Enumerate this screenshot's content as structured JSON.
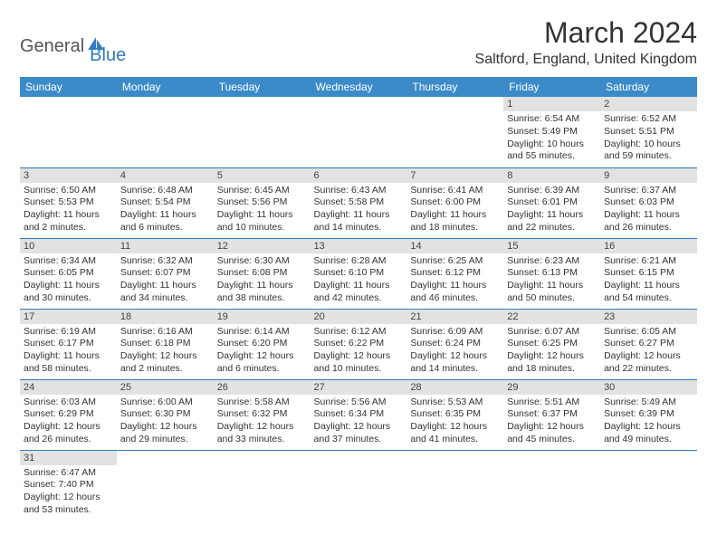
{
  "brand": {
    "part1": "General",
    "part2": "Blue"
  },
  "title": "March 2024",
  "location": "Saltford, England, United Kingdom",
  "colors": {
    "header_bg": "#3b8bc9",
    "header_text": "#ffffff",
    "row_divider": "#2f7bbf",
    "daynum_bg": "#e2e2e2",
    "brand_accent": "#2f7bbf"
  },
  "weekdays": [
    "Sunday",
    "Monday",
    "Tuesday",
    "Wednesday",
    "Thursday",
    "Friday",
    "Saturday"
  ],
  "weeks": [
    [
      {
        "day": "",
        "sunrise": "",
        "sunset": "",
        "daylight1": "",
        "daylight2": ""
      },
      {
        "day": "",
        "sunrise": "",
        "sunset": "",
        "daylight1": "",
        "daylight2": ""
      },
      {
        "day": "",
        "sunrise": "",
        "sunset": "",
        "daylight1": "",
        "daylight2": ""
      },
      {
        "day": "",
        "sunrise": "",
        "sunset": "",
        "daylight1": "",
        "daylight2": ""
      },
      {
        "day": "",
        "sunrise": "",
        "sunset": "",
        "daylight1": "",
        "daylight2": ""
      },
      {
        "day": "1",
        "sunrise": "Sunrise: 6:54 AM",
        "sunset": "Sunset: 5:49 PM",
        "daylight1": "Daylight: 10 hours",
        "daylight2": "and 55 minutes."
      },
      {
        "day": "2",
        "sunrise": "Sunrise: 6:52 AM",
        "sunset": "Sunset: 5:51 PM",
        "daylight1": "Daylight: 10 hours",
        "daylight2": "and 59 minutes."
      }
    ],
    [
      {
        "day": "3",
        "sunrise": "Sunrise: 6:50 AM",
        "sunset": "Sunset: 5:53 PM",
        "daylight1": "Daylight: 11 hours",
        "daylight2": "and 2 minutes."
      },
      {
        "day": "4",
        "sunrise": "Sunrise: 6:48 AM",
        "sunset": "Sunset: 5:54 PM",
        "daylight1": "Daylight: 11 hours",
        "daylight2": "and 6 minutes."
      },
      {
        "day": "5",
        "sunrise": "Sunrise: 6:45 AM",
        "sunset": "Sunset: 5:56 PM",
        "daylight1": "Daylight: 11 hours",
        "daylight2": "and 10 minutes."
      },
      {
        "day": "6",
        "sunrise": "Sunrise: 6:43 AM",
        "sunset": "Sunset: 5:58 PM",
        "daylight1": "Daylight: 11 hours",
        "daylight2": "and 14 minutes."
      },
      {
        "day": "7",
        "sunrise": "Sunrise: 6:41 AM",
        "sunset": "Sunset: 6:00 PM",
        "daylight1": "Daylight: 11 hours",
        "daylight2": "and 18 minutes."
      },
      {
        "day": "8",
        "sunrise": "Sunrise: 6:39 AM",
        "sunset": "Sunset: 6:01 PM",
        "daylight1": "Daylight: 11 hours",
        "daylight2": "and 22 minutes."
      },
      {
        "day": "9",
        "sunrise": "Sunrise: 6:37 AM",
        "sunset": "Sunset: 6:03 PM",
        "daylight1": "Daylight: 11 hours",
        "daylight2": "and 26 minutes."
      }
    ],
    [
      {
        "day": "10",
        "sunrise": "Sunrise: 6:34 AM",
        "sunset": "Sunset: 6:05 PM",
        "daylight1": "Daylight: 11 hours",
        "daylight2": "and 30 minutes."
      },
      {
        "day": "11",
        "sunrise": "Sunrise: 6:32 AM",
        "sunset": "Sunset: 6:07 PM",
        "daylight1": "Daylight: 11 hours",
        "daylight2": "and 34 minutes."
      },
      {
        "day": "12",
        "sunrise": "Sunrise: 6:30 AM",
        "sunset": "Sunset: 6:08 PM",
        "daylight1": "Daylight: 11 hours",
        "daylight2": "and 38 minutes."
      },
      {
        "day": "13",
        "sunrise": "Sunrise: 6:28 AM",
        "sunset": "Sunset: 6:10 PM",
        "daylight1": "Daylight: 11 hours",
        "daylight2": "and 42 minutes."
      },
      {
        "day": "14",
        "sunrise": "Sunrise: 6:25 AM",
        "sunset": "Sunset: 6:12 PM",
        "daylight1": "Daylight: 11 hours",
        "daylight2": "and 46 minutes."
      },
      {
        "day": "15",
        "sunrise": "Sunrise: 6:23 AM",
        "sunset": "Sunset: 6:13 PM",
        "daylight1": "Daylight: 11 hours",
        "daylight2": "and 50 minutes."
      },
      {
        "day": "16",
        "sunrise": "Sunrise: 6:21 AM",
        "sunset": "Sunset: 6:15 PM",
        "daylight1": "Daylight: 11 hours",
        "daylight2": "and 54 minutes."
      }
    ],
    [
      {
        "day": "17",
        "sunrise": "Sunrise: 6:19 AM",
        "sunset": "Sunset: 6:17 PM",
        "daylight1": "Daylight: 11 hours",
        "daylight2": "and 58 minutes."
      },
      {
        "day": "18",
        "sunrise": "Sunrise: 6:16 AM",
        "sunset": "Sunset: 6:18 PM",
        "daylight1": "Daylight: 12 hours",
        "daylight2": "and 2 minutes."
      },
      {
        "day": "19",
        "sunrise": "Sunrise: 6:14 AM",
        "sunset": "Sunset: 6:20 PM",
        "daylight1": "Daylight: 12 hours",
        "daylight2": "and 6 minutes."
      },
      {
        "day": "20",
        "sunrise": "Sunrise: 6:12 AM",
        "sunset": "Sunset: 6:22 PM",
        "daylight1": "Daylight: 12 hours",
        "daylight2": "and 10 minutes."
      },
      {
        "day": "21",
        "sunrise": "Sunrise: 6:09 AM",
        "sunset": "Sunset: 6:24 PM",
        "daylight1": "Daylight: 12 hours",
        "daylight2": "and 14 minutes."
      },
      {
        "day": "22",
        "sunrise": "Sunrise: 6:07 AM",
        "sunset": "Sunset: 6:25 PM",
        "daylight1": "Daylight: 12 hours",
        "daylight2": "and 18 minutes."
      },
      {
        "day": "23",
        "sunrise": "Sunrise: 6:05 AM",
        "sunset": "Sunset: 6:27 PM",
        "daylight1": "Daylight: 12 hours",
        "daylight2": "and 22 minutes."
      }
    ],
    [
      {
        "day": "24",
        "sunrise": "Sunrise: 6:03 AM",
        "sunset": "Sunset: 6:29 PM",
        "daylight1": "Daylight: 12 hours",
        "daylight2": "and 26 minutes."
      },
      {
        "day": "25",
        "sunrise": "Sunrise: 6:00 AM",
        "sunset": "Sunset: 6:30 PM",
        "daylight1": "Daylight: 12 hours",
        "daylight2": "and 29 minutes."
      },
      {
        "day": "26",
        "sunrise": "Sunrise: 5:58 AM",
        "sunset": "Sunset: 6:32 PM",
        "daylight1": "Daylight: 12 hours",
        "daylight2": "and 33 minutes."
      },
      {
        "day": "27",
        "sunrise": "Sunrise: 5:56 AM",
        "sunset": "Sunset: 6:34 PM",
        "daylight1": "Daylight: 12 hours",
        "daylight2": "and 37 minutes."
      },
      {
        "day": "28",
        "sunrise": "Sunrise: 5:53 AM",
        "sunset": "Sunset: 6:35 PM",
        "daylight1": "Daylight: 12 hours",
        "daylight2": "and 41 minutes."
      },
      {
        "day": "29",
        "sunrise": "Sunrise: 5:51 AM",
        "sunset": "Sunset: 6:37 PM",
        "daylight1": "Daylight: 12 hours",
        "daylight2": "and 45 minutes."
      },
      {
        "day": "30",
        "sunrise": "Sunrise: 5:49 AM",
        "sunset": "Sunset: 6:39 PM",
        "daylight1": "Daylight: 12 hours",
        "daylight2": "and 49 minutes."
      }
    ],
    [
      {
        "day": "31",
        "sunrise": "Sunrise: 6:47 AM",
        "sunset": "Sunset: 7:40 PM",
        "daylight1": "Daylight: 12 hours",
        "daylight2": "and 53 minutes."
      },
      {
        "day": "",
        "sunrise": "",
        "sunset": "",
        "daylight1": "",
        "daylight2": ""
      },
      {
        "day": "",
        "sunrise": "",
        "sunset": "",
        "daylight1": "",
        "daylight2": ""
      },
      {
        "day": "",
        "sunrise": "",
        "sunset": "",
        "daylight1": "",
        "daylight2": ""
      },
      {
        "day": "",
        "sunrise": "",
        "sunset": "",
        "daylight1": "",
        "daylight2": ""
      },
      {
        "day": "",
        "sunrise": "",
        "sunset": "",
        "daylight1": "",
        "daylight2": ""
      },
      {
        "day": "",
        "sunrise": "",
        "sunset": "",
        "daylight1": "",
        "daylight2": ""
      }
    ]
  ]
}
